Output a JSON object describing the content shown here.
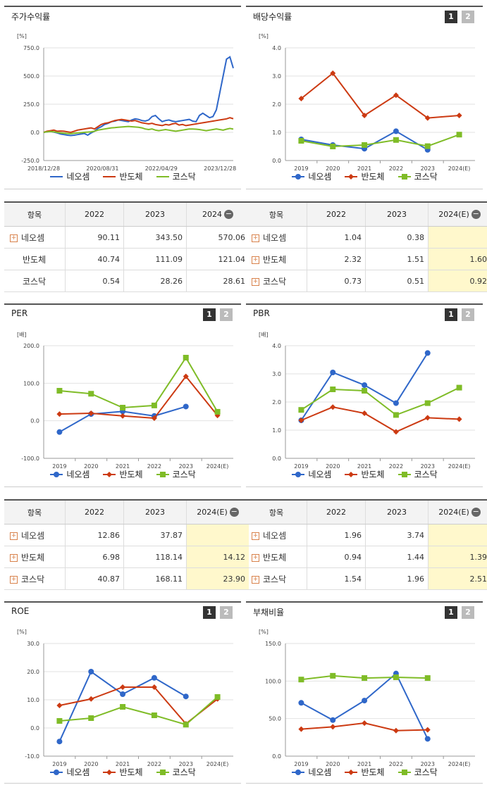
{
  "colors": {
    "neo": "#2f67c9",
    "semi": "#cc3a12",
    "kosdaq": "#7fbc27"
  },
  "series_names": [
    "네오셈",
    "반도체",
    "코스닥"
  ],
  "pager": {
    "p1": "1",
    "p2": "2"
  },
  "chart_data": [
    {
      "id": "stock",
      "type": "line",
      "title": "주가수익률",
      "unit": "[%]",
      "ylim": [
        -250,
        750
      ],
      "yticks": [
        "750.0",
        "500.0",
        "250.0",
        "0.0",
        "-250.0"
      ],
      "xticks": [
        "2018/12/28",
        "2020/08/31",
        "2022/04/29",
        "2023/12/28"
      ],
      "series": [
        {
          "name": "네오셈",
          "values": [
            0,
            5,
            8,
            2,
            -5,
            -15,
            -20,
            -25,
            -28,
            -25,
            -20,
            -15,
            -10,
            -25,
            -5,
            10,
            35,
            50,
            70,
            80,
            95,
            100,
            110,
            105,
            100,
            95,
            110,
            120,
            115,
            105,
            100,
            110,
            140,
            150,
            120,
            95,
            105,
            110,
            100,
            95,
            100,
            105,
            110,
            115,
            100,
            95,
            150,
            170,
            150,
            130,
            140,
            200,
            350,
            500,
            650,
            670,
            570
          ]
        },
        {
          "name": "반도체",
          "values": [
            0,
            10,
            15,
            20,
            10,
            12,
            10,
            5,
            0,
            10,
            20,
            25,
            30,
            35,
            40,
            30,
            50,
            70,
            80,
            85,
            95,
            105,
            110,
            115,
            110,
            105,
            100,
            105,
            95,
            85,
            80,
            75,
            80,
            70,
            65,
            60,
            70,
            65,
            75,
            80,
            65,
            70,
            60,
            65,
            70,
            75,
            80,
            85,
            90,
            95,
            100,
            105,
            110,
            115,
            120,
            130,
            121
          ]
        },
        {
          "name": "코스닥",
          "values": [
            0,
            5,
            8,
            5,
            0,
            -5,
            -8,
            -10,
            -12,
            -8,
            -5,
            -2,
            0,
            2,
            5,
            10,
            20,
            25,
            30,
            35,
            40,
            42,
            45,
            48,
            50,
            52,
            50,
            48,
            45,
            40,
            30,
            25,
            30,
            20,
            15,
            20,
            25,
            20,
            15,
            10,
            15,
            20,
            25,
            30,
            30,
            28,
            25,
            20,
            15,
            20,
            25,
            30,
            25,
            20,
            28,
            35,
            29
          ]
        }
      ]
    },
    {
      "id": "div",
      "type": "line",
      "title": "배당수익률",
      "unit": "[%]",
      "ylim": [
        0,
        4
      ],
      "yticks": [
        "4.0",
        "3.0",
        "2.0",
        "1.0",
        "0.0"
      ],
      "categories": [
        "2019",
        "2020",
        "2021",
        "2022",
        "2023",
        "2024(E)"
      ],
      "series": [
        {
          "name": "네오셈",
          "values": [
            0.75,
            0.55,
            0.42,
            1.04,
            0.38,
            null
          ]
        },
        {
          "name": "반도체",
          "values": [
            2.2,
            3.1,
            1.6,
            2.32,
            1.51,
            1.6
          ]
        },
        {
          "name": "코스닥",
          "values": [
            0.7,
            0.5,
            0.55,
            0.73,
            0.51,
            0.92
          ]
        }
      ]
    },
    {
      "id": "per",
      "type": "line",
      "title": "PER",
      "unit": "[배]",
      "ylim": [
        -100,
        200
      ],
      "yticks": [
        "200.0",
        "100.0",
        "0.0",
        "-100.0"
      ],
      "categories": [
        "2019",
        "2020",
        "2021",
        "2022",
        "2023",
        "2024(E)"
      ],
      "series": [
        {
          "name": "네오셈",
          "values": [
            -30,
            18,
            25,
            12.86,
            37.87,
            null
          ]
        },
        {
          "name": "반도체",
          "values": [
            18,
            20,
            13,
            6.98,
            118.14,
            14.12
          ]
        },
        {
          "name": "코스닥",
          "values": [
            80,
            72,
            35,
            40.87,
            168.11,
            23.9
          ]
        }
      ]
    },
    {
      "id": "pbr",
      "type": "line",
      "title": "PBR",
      "unit": "[배]",
      "ylim": [
        0,
        4
      ],
      "yticks": [
        "4.0",
        "3.0",
        "2.0",
        "1.0",
        "0.0"
      ],
      "categories": [
        "2019",
        "2020",
        "2021",
        "2022",
        "2023",
        "2024(E)"
      ],
      "series": [
        {
          "name": "네오셈",
          "values": [
            1.35,
            3.05,
            2.6,
            1.96,
            3.74,
            null
          ]
        },
        {
          "name": "반도체",
          "values": [
            1.35,
            1.82,
            1.6,
            0.94,
            1.44,
            1.39
          ]
        },
        {
          "name": "코스닥",
          "values": [
            1.72,
            2.45,
            2.4,
            1.54,
            1.96,
            2.51
          ]
        }
      ]
    },
    {
      "id": "roe",
      "type": "line",
      "title": "ROE",
      "unit": "[%]",
      "ylim": [
        -10,
        30
      ],
      "yticks": [
        "30.0",
        "20.0",
        "10.0",
        "0.0",
        "-10.0"
      ],
      "categories": [
        "2019",
        "2020",
        "2021",
        "2022",
        "2023",
        "2024(E)"
      ],
      "series": [
        {
          "name": "네오셈",
          "values": [
            -4.8,
            20.0,
            12.0,
            17.8,
            11.2,
            null
          ]
        },
        {
          "name": "반도체",
          "values": [
            8.0,
            10.3,
            14.5,
            14.5,
            1.5,
            10.3
          ]
        },
        {
          "name": "코스닥",
          "values": [
            2.5,
            3.5,
            7.5,
            4.5,
            1.2,
            11.0
          ]
        }
      ]
    },
    {
      "id": "debt",
      "type": "line",
      "title": "부채비율",
      "unit": "[%]",
      "ylim": [
        0,
        150
      ],
      "yticks": [
        "150.0",
        "100.0",
        "50.0",
        "0.0"
      ],
      "categories": [
        "2019",
        "2020",
        "2021",
        "2022",
        "2023",
        "2024(E)"
      ],
      "series": [
        {
          "name": "네오셈",
          "values": [
            71,
            48,
            74,
            110,
            23,
            null
          ]
        },
        {
          "name": "반도체",
          "values": [
            36,
            39,
            44,
            34,
            35,
            null
          ]
        },
        {
          "name": "코스닥",
          "values": [
            102,
            107,
            104,
            105,
            104,
            null
          ]
        }
      ]
    }
  ],
  "tables": {
    "stock": {
      "headers": [
        "항목",
        "2022",
        "2023",
        "2024"
      ],
      "rows": [
        [
          "네오셈",
          "90.11",
          "343.50",
          "570.06"
        ],
        [
          "반도체",
          "40.74",
          "111.09",
          "121.04"
        ],
        [
          "코스닥",
          "0.54",
          "28.26",
          "28.61"
        ]
      ]
    },
    "div": {
      "headers": [
        "항목",
        "2022",
        "2023",
        "2024(E)"
      ],
      "rows": [
        [
          "네오셈",
          "1.04",
          "0.38",
          ""
        ],
        [
          "반도체",
          "2.32",
          "1.51",
          "1.60"
        ],
        [
          "코스닥",
          "0.73",
          "0.51",
          "0.92"
        ]
      ]
    },
    "per": {
      "headers": [
        "항목",
        "2022",
        "2023",
        "2024(E)"
      ],
      "rows": [
        [
          "네오셈",
          "12.86",
          "37.87",
          ""
        ],
        [
          "반도체",
          "6.98",
          "118.14",
          "14.12"
        ],
        [
          "코스닥",
          "40.87",
          "168.11",
          "23.90"
        ]
      ]
    },
    "pbr": {
      "headers": [
        "항목",
        "2022",
        "2023",
        "2024(E)"
      ],
      "rows": [
        [
          "네오셈",
          "1.96",
          "3.74",
          ""
        ],
        [
          "반도체",
          "0.94",
          "1.44",
          "1.39"
        ],
        [
          "코스닥",
          "1.54",
          "1.96",
          "2.51"
        ]
      ]
    }
  }
}
